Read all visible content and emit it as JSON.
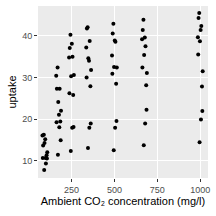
{
  "chart_data": {
    "type": "scatter",
    "x_label": "Ambient CO₂ concentration (mg/l)",
    "y_label": "uptake",
    "color": "#000000",
    "marker": "circle",
    "grid": true,
    "xlim": [
      55,
      1045
    ],
    "ylim": [
      5.8,
      47.2
    ],
    "xticks": [
      250,
      500,
      750,
      1000
    ],
    "yticks": [
      10,
      20,
      30,
      40
    ],
    "x": [
      81,
      161,
      236,
      336,
      486,
      661,
      986,
      85,
      165,
      240,
      340,
      490,
      665,
      990,
      89,
      169,
      244,
      344,
      494,
      669,
      994,
      93,
      173,
      248,
      348,
      498,
      673,
      998,
      97,
      177,
      252,
      352,
      502,
      677,
      1002,
      101,
      181,
      256,
      356,
      506,
      681,
      1006,
      105,
      185,
      260,
      360,
      510,
      685,
      1010,
      109,
      189,
      264,
      364,
      514,
      689,
      1014,
      83,
      163,
      238,
      338,
      488,
      663,
      988,
      91,
      171,
      246,
      346,
      496,
      671,
      996,
      99,
      179,
      254,
      354,
      504,
      679,
      1004,
      107,
      187,
      262,
      362,
      512,
      687,
      1012
    ],
    "values": [
      16.0,
      30.4,
      34.8,
      37.2,
      35.3,
      39.2,
      39.7,
      13.6,
      27.3,
      37.1,
      41.8,
      40.6,
      41.4,
      44.3,
      16.2,
      32.4,
      40.3,
      42.1,
      42.9,
      43.9,
      45.5,
      14.2,
      24.1,
      30.3,
      34.6,
      32.5,
      35.4,
      38.7,
      15.1,
      21.0,
      38.1,
      34.0,
      38.9,
      39.6,
      41.4,
      9.3,
      27.3,
      35.0,
      38.8,
      38.6,
      37.5,
      42.4,
      11.3,
      19.4,
      25.8,
      27.9,
      28.5,
      28.1,
      27.8,
      12.0,
      22.0,
      30.6,
      31.8,
      32.4,
      31.1,
      31.5,
      10.6,
      19.2,
      26.2,
      30.0,
      30.9,
      32.4,
      35.5,
      7.7,
      11.4,
      12.3,
      13.0,
      12.5,
      13.7,
      14.4,
      10.6,
      18.0,
      17.9,
      17.9,
      17.9,
      18.9,
      19.9,
      10.5,
      14.9,
      18.1,
      18.9,
      19.5,
      22.2,
      21.9
    ]
  }
}
